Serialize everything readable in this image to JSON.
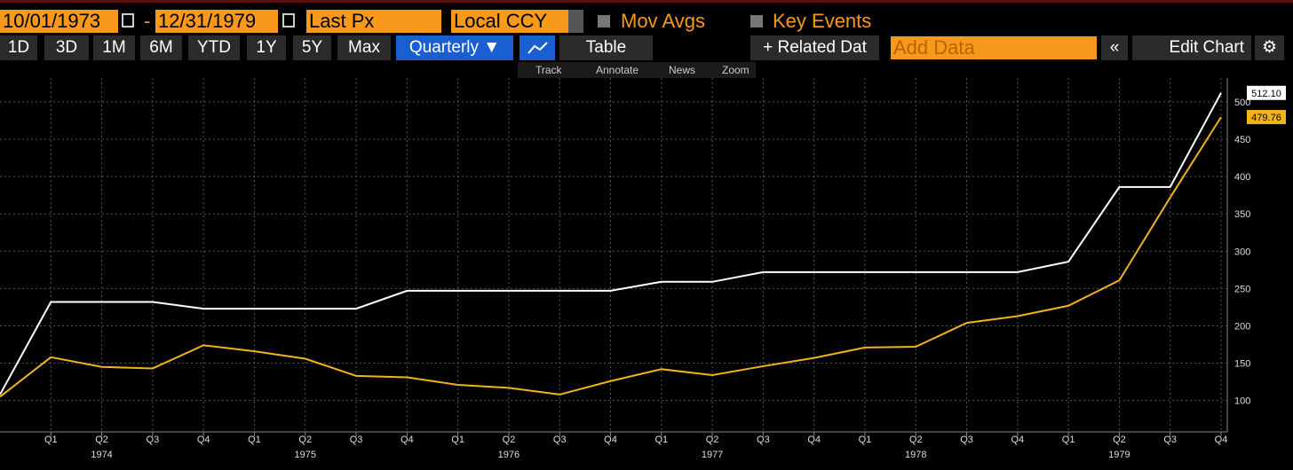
{
  "toolbar": {
    "start_date": "10/01/1973",
    "date_separator": "-",
    "end_date": "12/31/1979",
    "field": "Last Px",
    "currency": "Local CCY",
    "moving_averages": "Mov Avgs",
    "key_events": "Key Events"
  },
  "range_buttons": [
    "1D",
    "3D",
    "1M",
    "6M",
    "YTD",
    "1Y",
    "5Y",
    "Max"
  ],
  "period": "Quarterly ▼",
  "table": "Table",
  "related_data": "+ Related Dat",
  "add_data": "Add Data",
  "edit_chart": "Edit Chart",
  "chart_tools": [
    "Track",
    "Annotate",
    "News",
    "Zoom"
  ],
  "chart_data": {
    "type": "line",
    "categories": [
      null,
      "Q1",
      "Q2",
      "Q3",
      "Q4",
      "Q1",
      "Q2",
      "Q3",
      "Q4",
      "Q1",
      "Q2",
      "Q3",
      "Q4",
      "Q1",
      "Q2",
      "Q3",
      "Q4",
      "Q1",
      "Q2",
      "Q3",
      "Q4",
      "Q1",
      "Q2",
      "Q3",
      "Q4"
    ],
    "years": [
      "1974",
      "1975",
      "1976",
      "1977",
      "1978",
      "1979"
    ],
    "series": [
      {
        "color": "#ffffff",
        "values": [
          108,
          232,
          232,
          232,
          223,
          223,
          223,
          223,
          247,
          247,
          247,
          247,
          247,
          259,
          259,
          272,
          272,
          272,
          272,
          272,
          272,
          286,
          386,
          386,
          512.1
        ],
        "value_labels": [
          null,
          null,
          null,
          null,
          null,
          null,
          null,
          null,
          null,
          null,
          null,
          null,
          null,
          null,
          null,
          null,
          null,
          null,
          null,
          null,
          null,
          null,
          null,
          null,
          "512.10"
        ]
      },
      {
        "color": "#f2b31b",
        "values": [
          105,
          158,
          145,
          143,
          174,
          166,
          156,
          133,
          131,
          121,
          117,
          108,
          126,
          142,
          134,
          146,
          157,
          171,
          172,
          204,
          213,
          227,
          261,
          372,
          479.76
        ],
        "value_labels": [
          null,
          null,
          null,
          null,
          null,
          null,
          null,
          null,
          null,
          null,
          null,
          null,
          null,
          null,
          null,
          null,
          null,
          null,
          null,
          null,
          null,
          null,
          null,
          null,
          "479.76"
        ]
      }
    ],
    "ylim": [
      58,
      532
    ],
    "yticks": [
      100,
      150,
      200,
      250,
      300,
      350,
      400,
      450,
      500
    ],
    "grid": true
  }
}
